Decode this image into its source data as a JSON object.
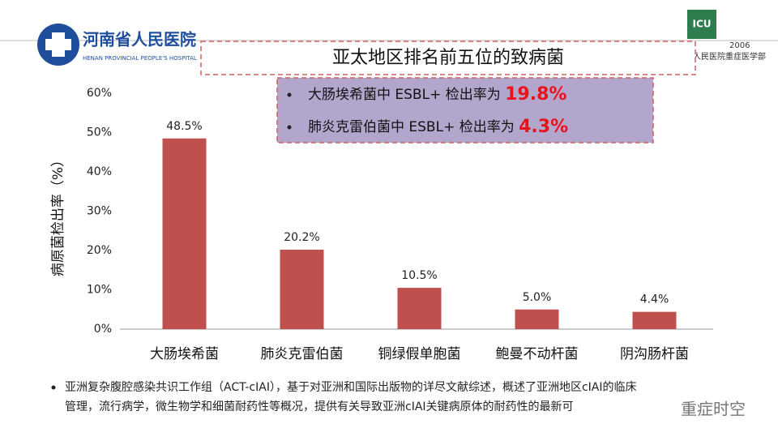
{
  "header": {
    "hospital_name": "河南省人民医院",
    "hospital_name_en": "HENAN PROVINCIAL PEOPLE'S HOSPITAL",
    "icu_logo": "ICU",
    "icu_year": "2006",
    "department": "人民医院重症医学部"
  },
  "callout": {
    "items": [
      {
        "text": "大肠埃希菌中 ESBL+ 检出率为 ",
        "highlight": "19.8%"
      },
      {
        "text": "肺炎克雷伯菌中 ESBL+ 检出率为 ",
        "highlight": "4.3%"
      }
    ]
  },
  "chart_data": {
    "type": "bar",
    "title": "亚太地区排名前五位的致病菌",
    "y_label": "病原菌检出率（%）",
    "categories": [
      "大肠埃希菌",
      "肺炎克雷伯菌",
      "铜绿假单胞菌",
      "鲍曼不动杆菌",
      "阴沟肠杆菌"
    ],
    "values": [
      48.5,
      20.2,
      10.5,
      5.0,
      4.4
    ],
    "value_labels": [
      "48.5%",
      "20.2%",
      "10.5%",
      "5.0%",
      "4.4%"
    ],
    "color": "#c0504d",
    "ylim": [
      0,
      60
    ],
    "yticks": [
      {
        "value": 0,
        "label": "0%"
      },
      {
        "value": 10,
        "label": "10%"
      },
      {
        "value": 20,
        "label": "20%"
      },
      {
        "value": 30,
        "label": "30%"
      },
      {
        "value": 40,
        "label": "40%"
      },
      {
        "value": 50,
        "label": "50%"
      },
      {
        "value": 60,
        "label": "60%"
      }
    ],
    "grid": false
  },
  "footnote": [
    "亚洲复杂腹腔感染共识工作组（ACT-cIAI），基于对亚洲和国际出版物的详尽文献综述，概述了亚洲地区cIAI的临床",
    "管理，流行病学，微生物学和细菌耐药性等概况，提供有关导致亚洲cIAI关键病原体的耐药性的最新可"
  ],
  "watermark": "重症时空"
}
